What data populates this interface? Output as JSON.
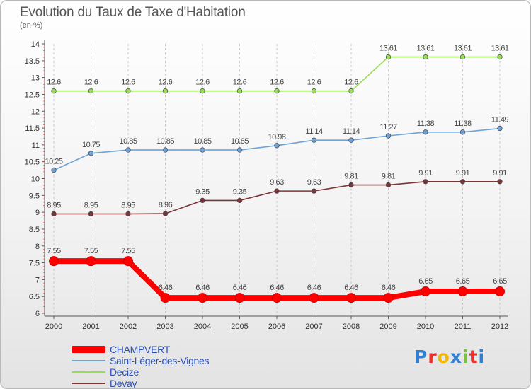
{
  "header": {
    "title": "Evolution du Taux de Taxe d'Habitation",
    "unit": "(en %)"
  },
  "logo": {
    "text": "Proxiti",
    "letter_colors": [
      "#2f7fd6",
      "#e8322b",
      "#f2b705",
      "#2f7fd6",
      "#7ac143",
      "#e8322b",
      "#2f7fd6"
    ]
  },
  "chart_data": {
    "type": "line",
    "title": "Evolution du Taux de Taxe d'Habitation",
    "ylabel": "(en %)",
    "xlabel": "",
    "x": [
      "2000",
      "2001",
      "2002",
      "2003",
      "2004",
      "2005",
      "2006",
      "2007",
      "2008",
      "2009",
      "2010",
      "2011",
      "2012"
    ],
    "ylim": [
      6,
      14
    ],
    "yticks": [
      "6",
      "6.5",
      "7",
      "7.5",
      "8",
      "8.5",
      "9",
      "9.5",
      "10",
      "10.5",
      "11",
      "11.5",
      "12",
      "12.5",
      "13",
      "13.5",
      "14"
    ],
    "grid": "vertical dashed",
    "legend_position": "bottom-left",
    "series": [
      {
        "name": "CHAMPVERT",
        "color": "#ff0000",
        "values": [
          7.55,
          7.55,
          7.55,
          6.46,
          6.46,
          6.46,
          6.46,
          6.46,
          6.46,
          6.46,
          6.65,
          6.65,
          6.65
        ],
        "labels": [
          "7.55",
          "7.55",
          "7.55",
          "6.46",
          "6.46",
          "6.46",
          "6.46",
          "6.46",
          "6.46",
          "6.46",
          "6.65",
          "6.65",
          "6.65"
        ]
      },
      {
        "name": "Saint-Léger-des-Vignes",
        "color": "#6fa3d4",
        "values": [
          10.25,
          10.75,
          10.85,
          10.85,
          10.85,
          10.85,
          10.98,
          11.14,
          11.14,
          11.27,
          11.38,
          11.38,
          11.49
        ],
        "labels": [
          "10.25",
          "10.75",
          "10.85",
          "10.85",
          "10.85",
          "10.85",
          "10.98",
          "11.14",
          "11.14",
          "11.27",
          "11.38",
          "11.38",
          "11.49"
        ]
      },
      {
        "name": "Decize",
        "color": "#99dd55",
        "values": [
          12.6,
          12.6,
          12.6,
          12.6,
          12.6,
          12.6,
          12.6,
          12.6,
          12.6,
          13.61,
          13.61,
          13.61,
          13.61
        ],
        "labels": [
          "12.6",
          "12.6",
          "12.6",
          "12.6",
          "12.6",
          "12.6",
          "12.6",
          "12.6",
          "12.6",
          "13.61",
          "13.61",
          "13.61",
          "13.61"
        ]
      },
      {
        "name": "Devay",
        "color": "#7a3535",
        "values": [
          8.95,
          8.95,
          8.95,
          8.96,
          9.35,
          9.35,
          9.63,
          9.63,
          9.81,
          9.81,
          9.91,
          9.91,
          9.91
        ],
        "labels": [
          "8.95",
          "8.95",
          "8.95",
          "8.96",
          "9.35",
          "9.35",
          "9.63",
          "9.63",
          "9.81",
          "9.81",
          "9.91",
          "9.91",
          "9.91"
        ]
      }
    ]
  }
}
